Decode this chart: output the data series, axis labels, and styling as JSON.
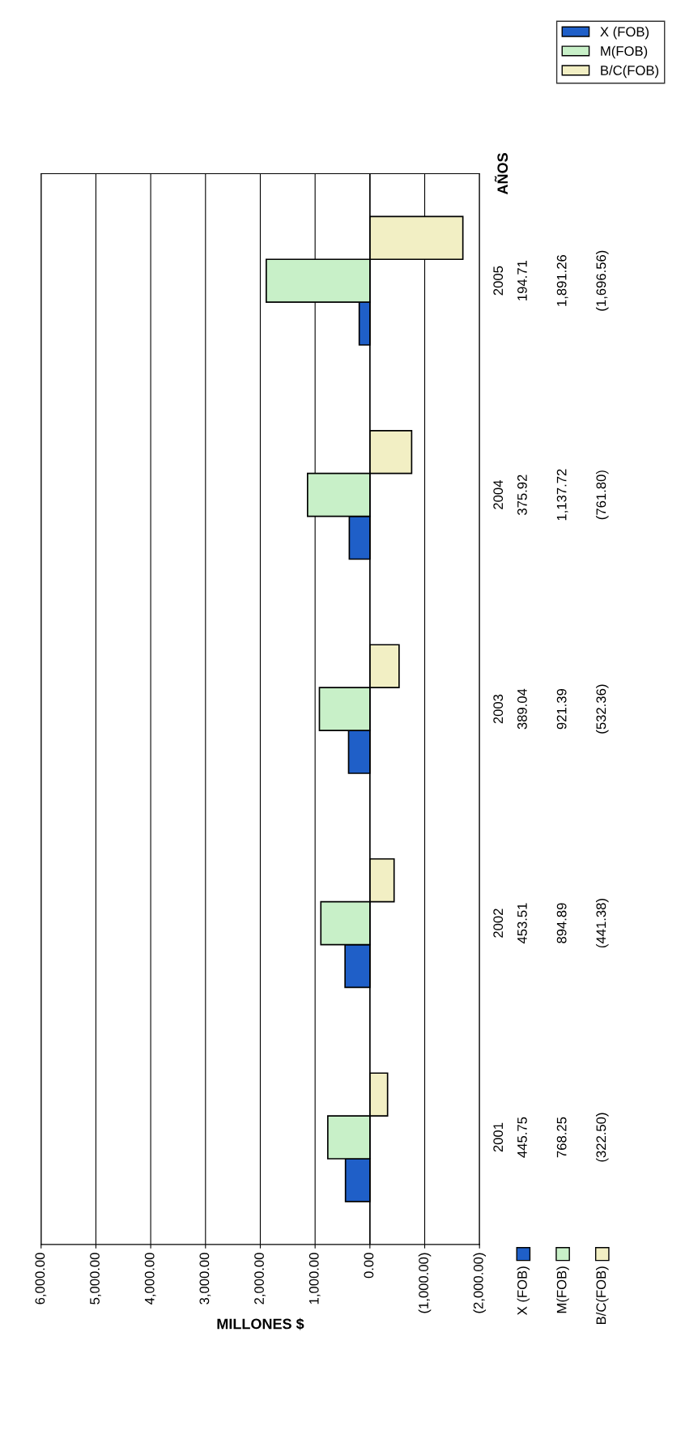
{
  "chart_data": {
    "type": "bar",
    "orientation": "horizontal",
    "xlabel": "MILLONES $",
    "ylabel": "AÑOS",
    "categories": [
      "2005",
      "2004",
      "2003",
      "2002",
      "2001"
    ],
    "series": [
      {
        "name": "X (FOB)",
        "color": "#1f5fc8",
        "values": [
          194.71,
          375.92,
          389.04,
          453.51,
          445.75
        ],
        "value_labels": [
          "194.71",
          "375.92",
          "389.04",
          "453.51",
          "445.75"
        ]
      },
      {
        "name": "M(FOB)",
        "color": "#c8f0c8",
        "values": [
          1891.26,
          1137.72,
          921.39,
          894.89,
          768.25
        ],
        "value_labels": [
          "1,891.26",
          "1,137.72",
          "921.39",
          "894.89",
          "768.25"
        ]
      },
      {
        "name": "B/C(FOB)",
        "color": "#f2efc4",
        "values": [
          -1696.56,
          -761.8,
          -532.36,
          -441.38,
          -322.5
        ],
        "value_labels": [
          "(1,696.56)",
          "(761.80)",
          "(532.36)",
          "(441.38)",
          "(322.50)"
        ]
      }
    ],
    "xlim": [
      6000,
      -2000
    ],
    "xticks": [
      {
        "value": 6000,
        "label": "6,000.00"
      },
      {
        "value": 5000,
        "label": "5,000.00"
      },
      {
        "value": 4000,
        "label": "4,000.00"
      },
      {
        "value": 3000,
        "label": "3,000.00"
      },
      {
        "value": 2000,
        "label": "2,000.00"
      },
      {
        "value": 1000,
        "label": "1,000.00"
      },
      {
        "value": 0,
        "label": "0.00"
      },
      {
        "value": -1000,
        "label": "(1,000.00)"
      },
      {
        "value": -2000,
        "label": "(2,000.00)"
      }
    ],
    "grid": "x",
    "legend": "top right"
  }
}
